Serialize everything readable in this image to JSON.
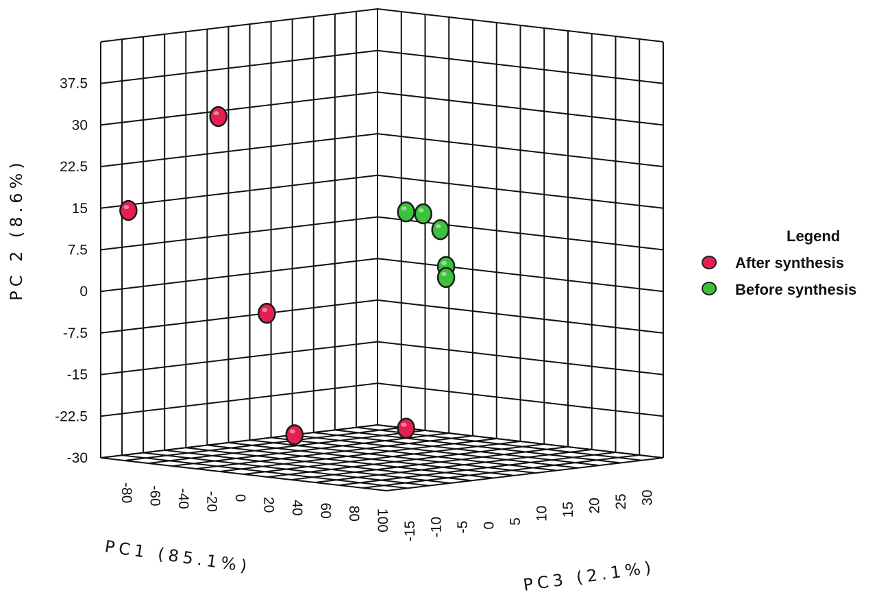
{
  "chart_data": {
    "type": "scatter",
    "dimensions": 3,
    "axes": {
      "x": {
        "label": "PC1 (85.1%)",
        "ticks": [
          "-80",
          "-60",
          "-40",
          "-20",
          "0",
          "20",
          "40",
          "60",
          "80",
          "100"
        ],
        "range": [
          -100,
          100
        ]
      },
      "y": {
        "label": "PC 2 (8.6%)",
        "ticks": [
          "37.5",
          "30",
          "22.5",
          "15",
          "7.5",
          "0",
          "-7.5",
          "-15",
          "-22.5",
          "-30"
        ],
        "range": [
          -30,
          45
        ]
      },
      "z": {
        "label": "PC3 (2.1%)",
        "ticks": [
          "-15",
          "-10",
          "-5",
          "0",
          "5",
          "10",
          "15",
          "20",
          "25",
          "30"
        ],
        "range": [
          -20,
          30
        ]
      }
    },
    "legend": {
      "title": "Legend",
      "position": "right"
    },
    "series": [
      {
        "name": "After synthesis",
        "color": "#e3204f",
        "points": [
          {
            "x": -80,
            "y": 14,
            "z": -20
          },
          {
            "x": -15,
            "y": 29,
            "z": -20
          },
          {
            "x": 20,
            "y": -7.5,
            "z": -20
          },
          {
            "x": 40,
            "y": -30,
            "z": -20
          },
          {
            "x": 100,
            "y": -30,
            "z": -15
          }
        ]
      },
      {
        "name": "Before synthesis",
        "color": "#3cc13c",
        "points": [
          {
            "x": 100,
            "y": 9,
            "z": -15
          },
          {
            "x": 100,
            "y": 9,
            "z": -12
          },
          {
            "x": 100,
            "y": 6.5,
            "z": -9
          },
          {
            "x": 100,
            "y": 0,
            "z": -8
          },
          {
            "x": 100,
            "y": -2,
            "z": -8
          }
        ]
      }
    ],
    "grid": true
  }
}
